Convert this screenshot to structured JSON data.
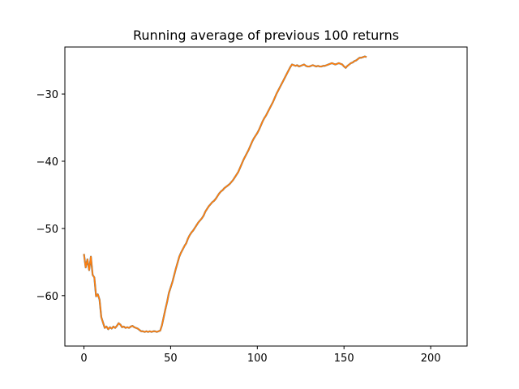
{
  "chart_data": {
    "type": "line",
    "title": "Running average of previous 100 returns",
    "xlabel": "",
    "ylabel": "",
    "xlim": [
      -11,
      221
    ],
    "ylim": [
      -67.5,
      -23
    ],
    "x_ticks": [
      0,
      50,
      100,
      150,
      200
    ],
    "y_ticks": [
      -30,
      -40,
      -50,
      -60
    ],
    "grid": false,
    "series": [
      {
        "color": "#ff7f0e",
        "underlay_color": "#1f77b4",
        "points": [
          [
            0,
            -53.8
          ],
          [
            1,
            -55.8
          ],
          [
            2,
            -54.6
          ],
          [
            3,
            -56.2
          ],
          [
            4,
            -54.2
          ],
          [
            5,
            -56.9
          ],
          [
            6,
            -57.3
          ],
          [
            7,
            -60.1
          ],
          [
            8,
            -59.8
          ],
          [
            9,
            -60.6
          ],
          [
            10,
            -63.2
          ],
          [
            11,
            -64.0
          ],
          [
            12,
            -64.8
          ],
          [
            13,
            -64.6
          ],
          [
            14,
            -65.0
          ],
          [
            15,
            -64.7
          ],
          [
            16,
            -64.9
          ],
          [
            17,
            -64.6
          ],
          [
            18,
            -64.8
          ],
          [
            19,
            -64.5
          ],
          [
            20,
            -64.1
          ],
          [
            21,
            -64.3
          ],
          [
            22,
            -64.7
          ],
          [
            23,
            -64.6
          ],
          [
            24,
            -64.8
          ],
          [
            25,
            -64.7
          ],
          [
            26,
            -64.8
          ],
          [
            27,
            -64.6
          ],
          [
            28,
            -64.5
          ],
          [
            29,
            -64.7
          ],
          [
            30,
            -64.8
          ],
          [
            31,
            -64.9
          ],
          [
            32,
            -65.1
          ],
          [
            33,
            -65.3
          ],
          [
            34,
            -65.3
          ],
          [
            35,
            -65.4
          ],
          [
            36,
            -65.3
          ],
          [
            37,
            -65.4
          ],
          [
            38,
            -65.3
          ],
          [
            39,
            -65.4
          ],
          [
            40,
            -65.3
          ],
          [
            41,
            -65.3
          ],
          [
            42,
            -65.4
          ],
          [
            43,
            -65.3
          ],
          [
            44,
            -65.2
          ],
          [
            45,
            -64.4
          ],
          [
            46,
            -63.2
          ],
          [
            47,
            -62.0
          ],
          [
            48,
            -60.9
          ],
          [
            49,
            -59.6
          ],
          [
            50,
            -58.8
          ],
          [
            51,
            -58.0
          ],
          [
            52,
            -57.0
          ],
          [
            53,
            -56.0
          ],
          [
            54,
            -55.1
          ],
          [
            55,
            -54.2
          ],
          [
            56,
            -53.6
          ],
          [
            57,
            -53.1
          ],
          [
            58,
            -52.6
          ],
          [
            59,
            -52.2
          ],
          [
            60,
            -51.5
          ],
          [
            61,
            -51.0
          ],
          [
            62,
            -50.6
          ],
          [
            63,
            -50.3
          ],
          [
            64,
            -49.9
          ],
          [
            65,
            -49.5
          ],
          [
            66,
            -49.1
          ],
          [
            67,
            -48.8
          ],
          [
            68,
            -48.5
          ],
          [
            69,
            -48.1
          ],
          [
            70,
            -47.5
          ],
          [
            71,
            -47.1
          ],
          [
            72,
            -46.7
          ],
          [
            73,
            -46.4
          ],
          [
            74,
            -46.1
          ],
          [
            75,
            -45.9
          ],
          [
            76,
            -45.6
          ],
          [
            77,
            -45.2
          ],
          [
            78,
            -44.8
          ],
          [
            79,
            -44.5
          ],
          [
            80,
            -44.3
          ],
          [
            81,
            -44.0
          ],
          [
            82,
            -43.8
          ],
          [
            83,
            -43.6
          ],
          [
            84,
            -43.4
          ],
          [
            85,
            -43.1
          ],
          [
            86,
            -42.8
          ],
          [
            87,
            -42.4
          ],
          [
            88,
            -42.0
          ],
          [
            89,
            -41.6
          ],
          [
            90,
            -41.0
          ],
          [
            91,
            -40.4
          ],
          [
            92,
            -39.8
          ],
          [
            93,
            -39.3
          ],
          [
            94,
            -38.8
          ],
          [
            95,
            -38.3
          ],
          [
            96,
            -37.7
          ],
          [
            97,
            -37.1
          ],
          [
            98,
            -36.6
          ],
          [
            99,
            -36.2
          ],
          [
            100,
            -35.8
          ],
          [
            101,
            -35.3
          ],
          [
            102,
            -34.7
          ],
          [
            103,
            -34.1
          ],
          [
            104,
            -33.6
          ],
          [
            105,
            -33.2
          ],
          [
            106,
            -32.7
          ],
          [
            107,
            -32.2
          ],
          [
            108,
            -31.7
          ],
          [
            109,
            -31.2
          ],
          [
            110,
            -30.6
          ],
          [
            111,
            -30.0
          ],
          [
            112,
            -29.5
          ],
          [
            113,
            -29.0
          ],
          [
            114,
            -28.5
          ],
          [
            115,
            -28.0
          ],
          [
            116,
            -27.5
          ],
          [
            117,
            -27.0
          ],
          [
            118,
            -26.5
          ],
          [
            119,
            -26.0
          ],
          [
            120,
            -25.6
          ],
          [
            121,
            -25.7
          ],
          [
            122,
            -25.8
          ],
          [
            123,
            -25.7
          ],
          [
            124,
            -25.9
          ],
          [
            125,
            -25.8
          ],
          [
            126,
            -25.7
          ],
          [
            127,
            -25.6
          ],
          [
            128,
            -25.8
          ],
          [
            129,
            -25.9
          ],
          [
            130,
            -25.9
          ],
          [
            131,
            -25.8
          ],
          [
            132,
            -25.7
          ],
          [
            133,
            -25.8
          ],
          [
            134,
            -25.9
          ],
          [
            135,
            -25.8
          ],
          [
            136,
            -25.9
          ],
          [
            137,
            -25.9
          ],
          [
            138,
            -25.8
          ],
          [
            139,
            -25.8
          ],
          [
            140,
            -25.7
          ],
          [
            141,
            -25.6
          ],
          [
            142,
            -25.5
          ],
          [
            143,
            -25.4
          ],
          [
            144,
            -25.5
          ],
          [
            145,
            -25.6
          ],
          [
            146,
            -25.5
          ],
          [
            147,
            -25.4
          ],
          [
            148,
            -25.5
          ],
          [
            149,
            -25.6
          ],
          [
            150,
            -25.9
          ],
          [
            151,
            -26.1
          ],
          [
            152,
            -25.8
          ],
          [
            153,
            -25.6
          ],
          [
            154,
            -25.4
          ],
          [
            155,
            -25.3
          ],
          [
            156,
            -25.1
          ],
          [
            157,
            -25.0
          ],
          [
            158,
            -24.8
          ],
          [
            159,
            -24.6
          ],
          [
            160,
            -24.6
          ],
          [
            161,
            -24.5
          ],
          [
            162,
            -24.4
          ],
          [
            163,
            -24.5
          ]
        ]
      }
    ]
  }
}
